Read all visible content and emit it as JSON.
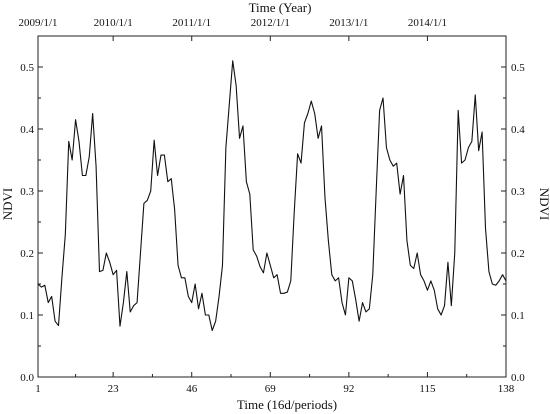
{
  "chart_data": {
    "type": "line",
    "xlabel": "Time (16d/periods)",
    "ylabel": "NDVI",
    "ylabel_right": "NDVI",
    "top_axis_label": "Time (Year)",
    "xlim": [
      1,
      138
    ],
    "ylim": [
      0.0,
      0.55
    ],
    "x_ticks": [
      1,
      23,
      46,
      69,
      92,
      115,
      138
    ],
    "y_ticks": [
      "0.0",
      "0.1",
      "0.2",
      "0.3",
      "0.4",
      "0.5"
    ],
    "top_ticks": [
      {
        "label": "2009/1/1",
        "x": 1
      },
      {
        "label": "2010/1/1",
        "x": 23
      },
      {
        "label": "2011/1/1",
        "x": 46
      },
      {
        "label": "2012/1/1",
        "x": 69
      },
      {
        "label": "2013/1/1",
        "x": 92
      },
      {
        "label": "2014/1/1",
        "x": 115
      }
    ],
    "grid": false,
    "series": [
      {
        "x": [
          1,
          2,
          3,
          4,
          5,
          6,
          7,
          8,
          9,
          10,
          11,
          12,
          13,
          14,
          15,
          16,
          17,
          18,
          19,
          20,
          21,
          22,
          23,
          24,
          25,
          26,
          27,
          28,
          29,
          30,
          31,
          32,
          33,
          34,
          35,
          36,
          37,
          38,
          39,
          40,
          41,
          42,
          43,
          44,
          45,
          46,
          47,
          48,
          49,
          50,
          51,
          52,
          53,
          54,
          55,
          56,
          57,
          58,
          59,
          60,
          61,
          62,
          63,
          64,
          65,
          66,
          67,
          68,
          69,
          70,
          71,
          72,
          73,
          74,
          75,
          76,
          77,
          78,
          79,
          80,
          81,
          82,
          83,
          84,
          85,
          86,
          87,
          88,
          89,
          90,
          91,
          92,
          93,
          94,
          95,
          96,
          97,
          98,
          99,
          100,
          101,
          102,
          103,
          104,
          105,
          106,
          107,
          108,
          109,
          110,
          111,
          112,
          113,
          114,
          115,
          116,
          117,
          118,
          119,
          120,
          121,
          122,
          123,
          124,
          125,
          126,
          127,
          128,
          129,
          130,
          131,
          132,
          133,
          134,
          135,
          136,
          137,
          138
        ],
        "values": [
          0.15,
          0.145,
          0.148,
          0.12,
          0.13,
          0.09,
          0.083,
          0.16,
          0.23,
          0.38,
          0.35,
          0.415,
          0.38,
          0.325,
          0.325,
          0.355,
          0.425,
          0.34,
          0.17,
          0.172,
          0.2,
          0.185,
          0.165,
          0.172,
          0.082,
          0.12,
          0.17,
          0.105,
          0.115,
          0.12,
          0.2,
          0.28,
          0.285,
          0.3,
          0.382,
          0.325,
          0.358,
          0.358,
          0.315,
          0.32,
          0.27,
          0.18,
          0.16,
          0.16,
          0.13,
          0.12,
          0.15,
          0.11,
          0.135,
          0.1,
          0.1,
          0.075,
          0.09,
          0.13,
          0.18,
          0.37,
          0.44,
          0.51,
          0.47,
          0.385,
          0.405,
          0.315,
          0.295,
          0.205,
          0.195,
          0.178,
          0.168,
          0.2,
          0.18,
          0.16,
          0.165,
          0.135,
          0.135,
          0.137,
          0.155,
          0.265,
          0.36,
          0.345,
          0.41,
          0.425,
          0.445,
          0.425,
          0.385,
          0.405,
          0.29,
          0.22,
          0.165,
          0.155,
          0.16,
          0.12,
          0.1,
          0.16,
          0.155,
          0.125,
          0.09,
          0.12,
          0.105,
          0.11,
          0.165,
          0.3,
          0.43,
          0.45,
          0.37,
          0.35,
          0.34,
          0.345,
          0.295,
          0.325,
          0.22,
          0.18,
          0.175,
          0.2,
          0.165,
          0.155,
          0.14,
          0.155,
          0.14,
          0.11,
          0.1,
          0.115,
          0.185,
          0.115,
          0.2,
          0.43,
          0.345,
          0.35,
          0.37,
          0.38,
          0.455,
          0.365,
          0.395,
          0.24,
          0.17,
          0.15,
          0.148,
          0.155,
          0.165,
          0.155
        ]
      }
    ]
  }
}
